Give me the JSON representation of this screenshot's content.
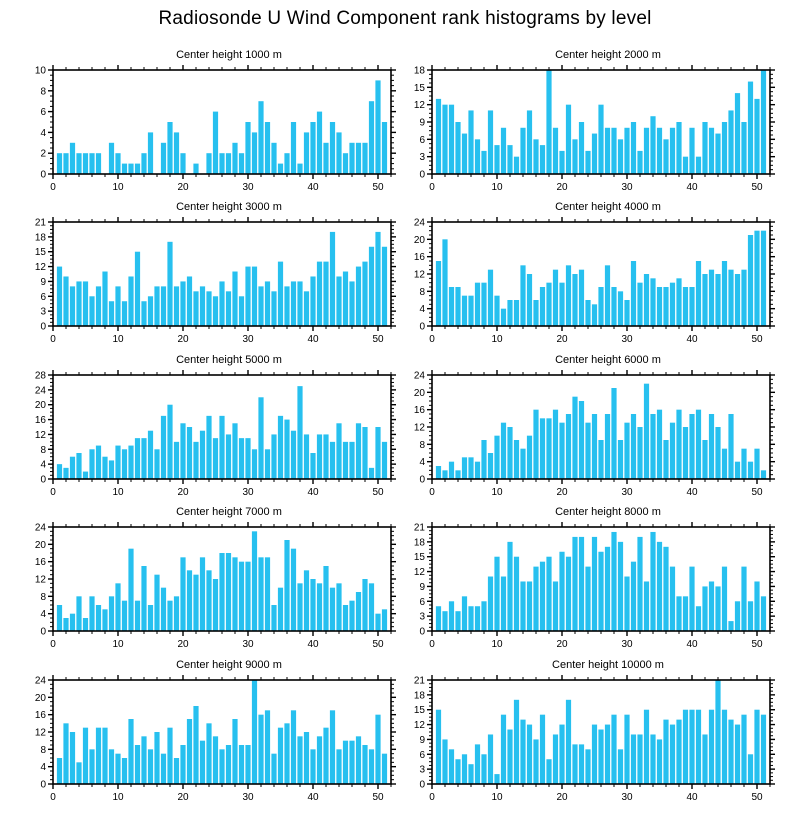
{
  "page_title": "Radiosonde U Wind Component rank histograms by level",
  "colors": {
    "bar": "#27C0EF",
    "axis": "#000000",
    "background": "#FFFFFF"
  },
  "chart_data": [
    {
      "type": "bar",
      "title": "Center height 1000 m",
      "xlabel": "",
      "ylabel": "",
      "xlim": [
        0,
        52
      ],
      "ylim": [
        0,
        10
      ],
      "y_step": 2,
      "x_ticks": [
        0,
        10,
        20,
        30,
        40,
        50
      ],
      "x": "rank 1-51",
      "values": [
        2,
        2,
        3,
        2,
        2,
        2,
        2,
        0,
        3,
        2,
        1,
        1,
        1,
        2,
        4,
        0,
        3,
        5,
        4,
        2,
        0,
        1,
        0,
        2,
        6,
        2,
        2,
        3,
        2,
        5,
        4,
        7,
        5,
        3,
        1,
        2,
        5,
        1,
        4,
        5,
        6,
        3,
        5,
        4,
        2,
        3,
        3,
        3,
        7,
        9,
        5
      ]
    },
    {
      "type": "bar",
      "title": "Center height 2000 m",
      "xlabel": "",
      "ylabel": "",
      "xlim": [
        0,
        52
      ],
      "ylim": [
        0,
        18
      ],
      "y_step": 3,
      "x_ticks": [
        0,
        10,
        20,
        30,
        40,
        50
      ],
      "x": "rank 1-51",
      "values": [
        13,
        12,
        12,
        9,
        7,
        11,
        6,
        4,
        11,
        5,
        8,
        5,
        3,
        8,
        11,
        6,
        5,
        18,
        8,
        4,
        12,
        6,
        9,
        4,
        7,
        12,
        8,
        8,
        6,
        8,
        9,
        4,
        8,
        10,
        8,
        6,
        8,
        9,
        3,
        8,
        3,
        9,
        8,
        7,
        9,
        11,
        14,
        9,
        16,
        13,
        18
      ]
    },
    {
      "type": "bar",
      "title": "Center height 3000 m",
      "xlabel": "",
      "ylabel": "",
      "xlim": [
        0,
        52
      ],
      "ylim": [
        0,
        21
      ],
      "y_step": 3,
      "x_ticks": [
        0,
        10,
        20,
        30,
        40,
        50
      ],
      "x": "rank 1-51",
      "values": [
        12,
        10,
        8,
        9,
        9,
        6,
        8,
        11,
        5,
        8,
        5,
        10,
        15,
        5,
        6,
        8,
        8,
        17,
        8,
        9,
        10,
        7,
        8,
        7,
        6,
        9,
        7,
        11,
        6,
        12,
        12,
        8,
        9,
        7,
        13,
        8,
        9,
        9,
        7,
        10,
        13,
        13,
        19,
        10,
        11,
        9,
        12,
        13,
        16,
        19,
        16
      ]
    },
    {
      "type": "bar",
      "title": "Center height 4000 m",
      "xlabel": "",
      "ylabel": "",
      "xlim": [
        0,
        52
      ],
      "ylim": [
        0,
        24
      ],
      "y_step": 4,
      "x_ticks": [
        0,
        10,
        20,
        30,
        40,
        50
      ],
      "x": "rank 1-51",
      "values": [
        15,
        20,
        9,
        9,
        7,
        7,
        10,
        10,
        13,
        7,
        4,
        6,
        6,
        14,
        12,
        6,
        9,
        10,
        13,
        10,
        14,
        12,
        13,
        6,
        5,
        9,
        14,
        9,
        8,
        6,
        15,
        10,
        12,
        11,
        9,
        9,
        10,
        11,
        9,
        9,
        15,
        12,
        13,
        12,
        15,
        13,
        12,
        13,
        21,
        22,
        22
      ]
    },
    {
      "type": "bar",
      "title": "Center height 5000 m",
      "xlabel": "",
      "ylabel": "",
      "xlim": [
        0,
        52
      ],
      "ylim": [
        0,
        28
      ],
      "y_step": 4,
      "x_ticks": [
        0,
        10,
        20,
        30,
        40,
        50
      ],
      "x": "rank 1-51",
      "values": [
        4,
        3,
        6,
        7,
        2,
        8,
        9,
        6,
        5,
        9,
        8,
        9,
        11,
        11,
        13,
        8,
        17,
        20,
        10,
        15,
        14,
        10,
        13,
        17,
        11,
        17,
        12,
        15,
        11,
        11,
        8,
        22,
        8,
        12,
        17,
        16,
        13,
        25,
        12,
        7,
        12,
        12,
        10,
        15,
        10,
        10,
        15,
        14,
        3,
        14,
        10
      ]
    },
    {
      "type": "bar",
      "title": "Center height 6000 m",
      "xlabel": "",
      "ylabel": "",
      "xlim": [
        0,
        52
      ],
      "ylim": [
        0,
        24
      ],
      "y_step": 4,
      "x_ticks": [
        0,
        10,
        20,
        30,
        40,
        50
      ],
      "x": "rank 1-51",
      "values": [
        3,
        2,
        4,
        2,
        5,
        5,
        4,
        9,
        6,
        10,
        13,
        12,
        9,
        7,
        10,
        16,
        14,
        14,
        16,
        13,
        15,
        19,
        18,
        13,
        15,
        9,
        15,
        21,
        9,
        13,
        15,
        12,
        22,
        15,
        16,
        9,
        13,
        16,
        12,
        15,
        16,
        9,
        15,
        12,
        7,
        15,
        4,
        7,
        4,
        7,
        2
      ]
    },
    {
      "type": "bar",
      "title": "Center height 7000 m",
      "xlabel": "",
      "ylabel": "",
      "xlim": [
        0,
        52
      ],
      "ylim": [
        0,
        24
      ],
      "y_step": 4,
      "x_ticks": [
        0,
        10,
        20,
        30,
        40,
        50
      ],
      "x": "rank 1-51",
      "values": [
        6,
        3,
        4,
        8,
        3,
        8,
        6,
        5,
        8,
        11,
        7,
        19,
        7,
        15,
        6,
        13,
        10,
        7,
        8,
        17,
        14,
        13,
        17,
        14,
        12,
        18,
        18,
        17,
        16,
        16,
        23,
        17,
        17,
        6,
        10,
        21,
        19,
        11,
        14,
        12,
        11,
        15,
        10,
        11,
        6,
        7,
        9,
        12,
        11,
        4,
        5
      ]
    },
    {
      "type": "bar",
      "title": "Center height 8000 m",
      "xlabel": "",
      "ylabel": "",
      "xlim": [
        0,
        52
      ],
      "ylim": [
        0,
        21
      ],
      "y_step": 3,
      "x_ticks": [
        0,
        10,
        20,
        30,
        40,
        50
      ],
      "x": "rank 1-51",
      "values": [
        5,
        4,
        6,
        4,
        7,
        5,
        5,
        6,
        11,
        15,
        11,
        18,
        15,
        10,
        10,
        13,
        14,
        15,
        10,
        16,
        15,
        19,
        19,
        13,
        19,
        16,
        17,
        20,
        18,
        11,
        14,
        19,
        10,
        20,
        18,
        17,
        13,
        7,
        7,
        13,
        5,
        9,
        10,
        9,
        13,
        2,
        6,
        13,
        6,
        10,
        7
      ]
    },
    {
      "type": "bar",
      "title": "Center height 9000 m",
      "xlabel": "",
      "ylabel": "",
      "xlim": [
        0,
        52
      ],
      "ylim": [
        0,
        24
      ],
      "y_step": 4,
      "x_ticks": [
        0,
        10,
        20,
        30,
        40,
        50
      ],
      "x": "rank 1-51",
      "values": [
        6,
        14,
        12,
        5,
        13,
        8,
        13,
        13,
        8,
        7,
        6,
        15,
        9,
        11,
        8,
        12,
        7,
        13,
        6,
        9,
        15,
        18,
        10,
        14,
        11,
        8,
        9,
        15,
        9,
        9,
        24,
        16,
        17,
        7,
        13,
        14,
        17,
        11,
        12,
        8,
        11,
        13,
        17,
        8,
        10,
        10,
        11,
        9,
        8,
        16,
        7
      ]
    },
    {
      "type": "bar",
      "title": "Center height 10000 m",
      "xlabel": "",
      "ylabel": "",
      "xlim": [
        0,
        52
      ],
      "ylim": [
        0,
        21
      ],
      "y_step": 3,
      "x_ticks": [
        0,
        10,
        20,
        30,
        40,
        50
      ],
      "x": "rank 1-51",
      "values": [
        15,
        9,
        7,
        5,
        6,
        4,
        8,
        6,
        10,
        2,
        14,
        11,
        17,
        13,
        12,
        9,
        14,
        5,
        10,
        12,
        17,
        8,
        8,
        7,
        12,
        11,
        12,
        14,
        7,
        14,
        10,
        10,
        15,
        10,
        9,
        13,
        12,
        13,
        15,
        15,
        15,
        10,
        15,
        21,
        15,
        13,
        12,
        14,
        6,
        15,
        14
      ]
    }
  ]
}
